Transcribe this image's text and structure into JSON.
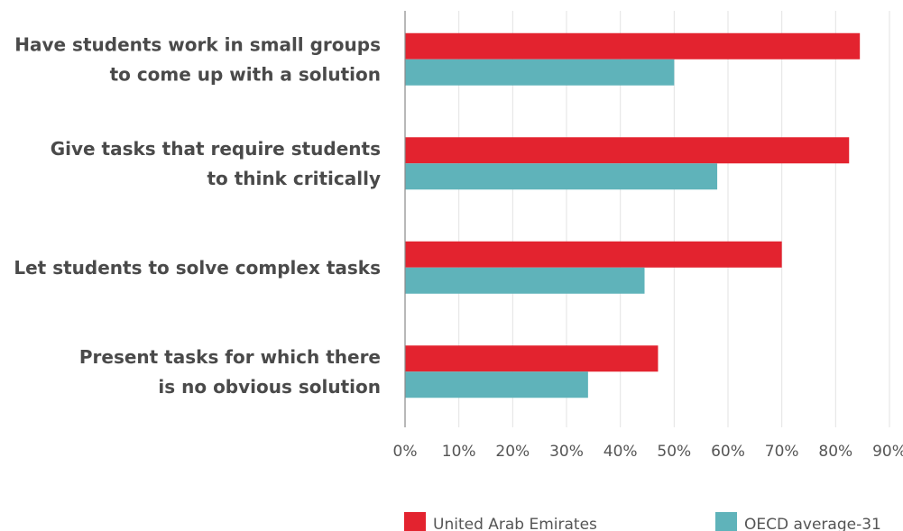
{
  "chart_data": {
    "type": "bar",
    "orientation": "horizontal",
    "categories": [
      [
        "Have students work in small groups",
        "to come up with a solution"
      ],
      [
        "Give tasks that require students",
        "to think critically"
      ],
      [
        "Let students to solve complex tasks"
      ],
      [
        "Present tasks for which there",
        "is no obvious solution"
      ]
    ],
    "series": [
      {
        "name": "United Arab Emirates",
        "color": "#e3232f",
        "values": [
          84.5,
          82.5,
          70,
          47
        ]
      },
      {
        "name": "OECD average-31",
        "color": "#5fb3ba",
        "values": [
          50,
          58,
          44.5,
          34
        ]
      }
    ],
    "xlim": [
      0,
      90
    ],
    "xticks": [
      "0%",
      "10%",
      "20%",
      "30%",
      "40%",
      "50%",
      "60%",
      "70%",
      "80%",
      "90%"
    ],
    "grid": true,
    "legend": "bottom"
  }
}
